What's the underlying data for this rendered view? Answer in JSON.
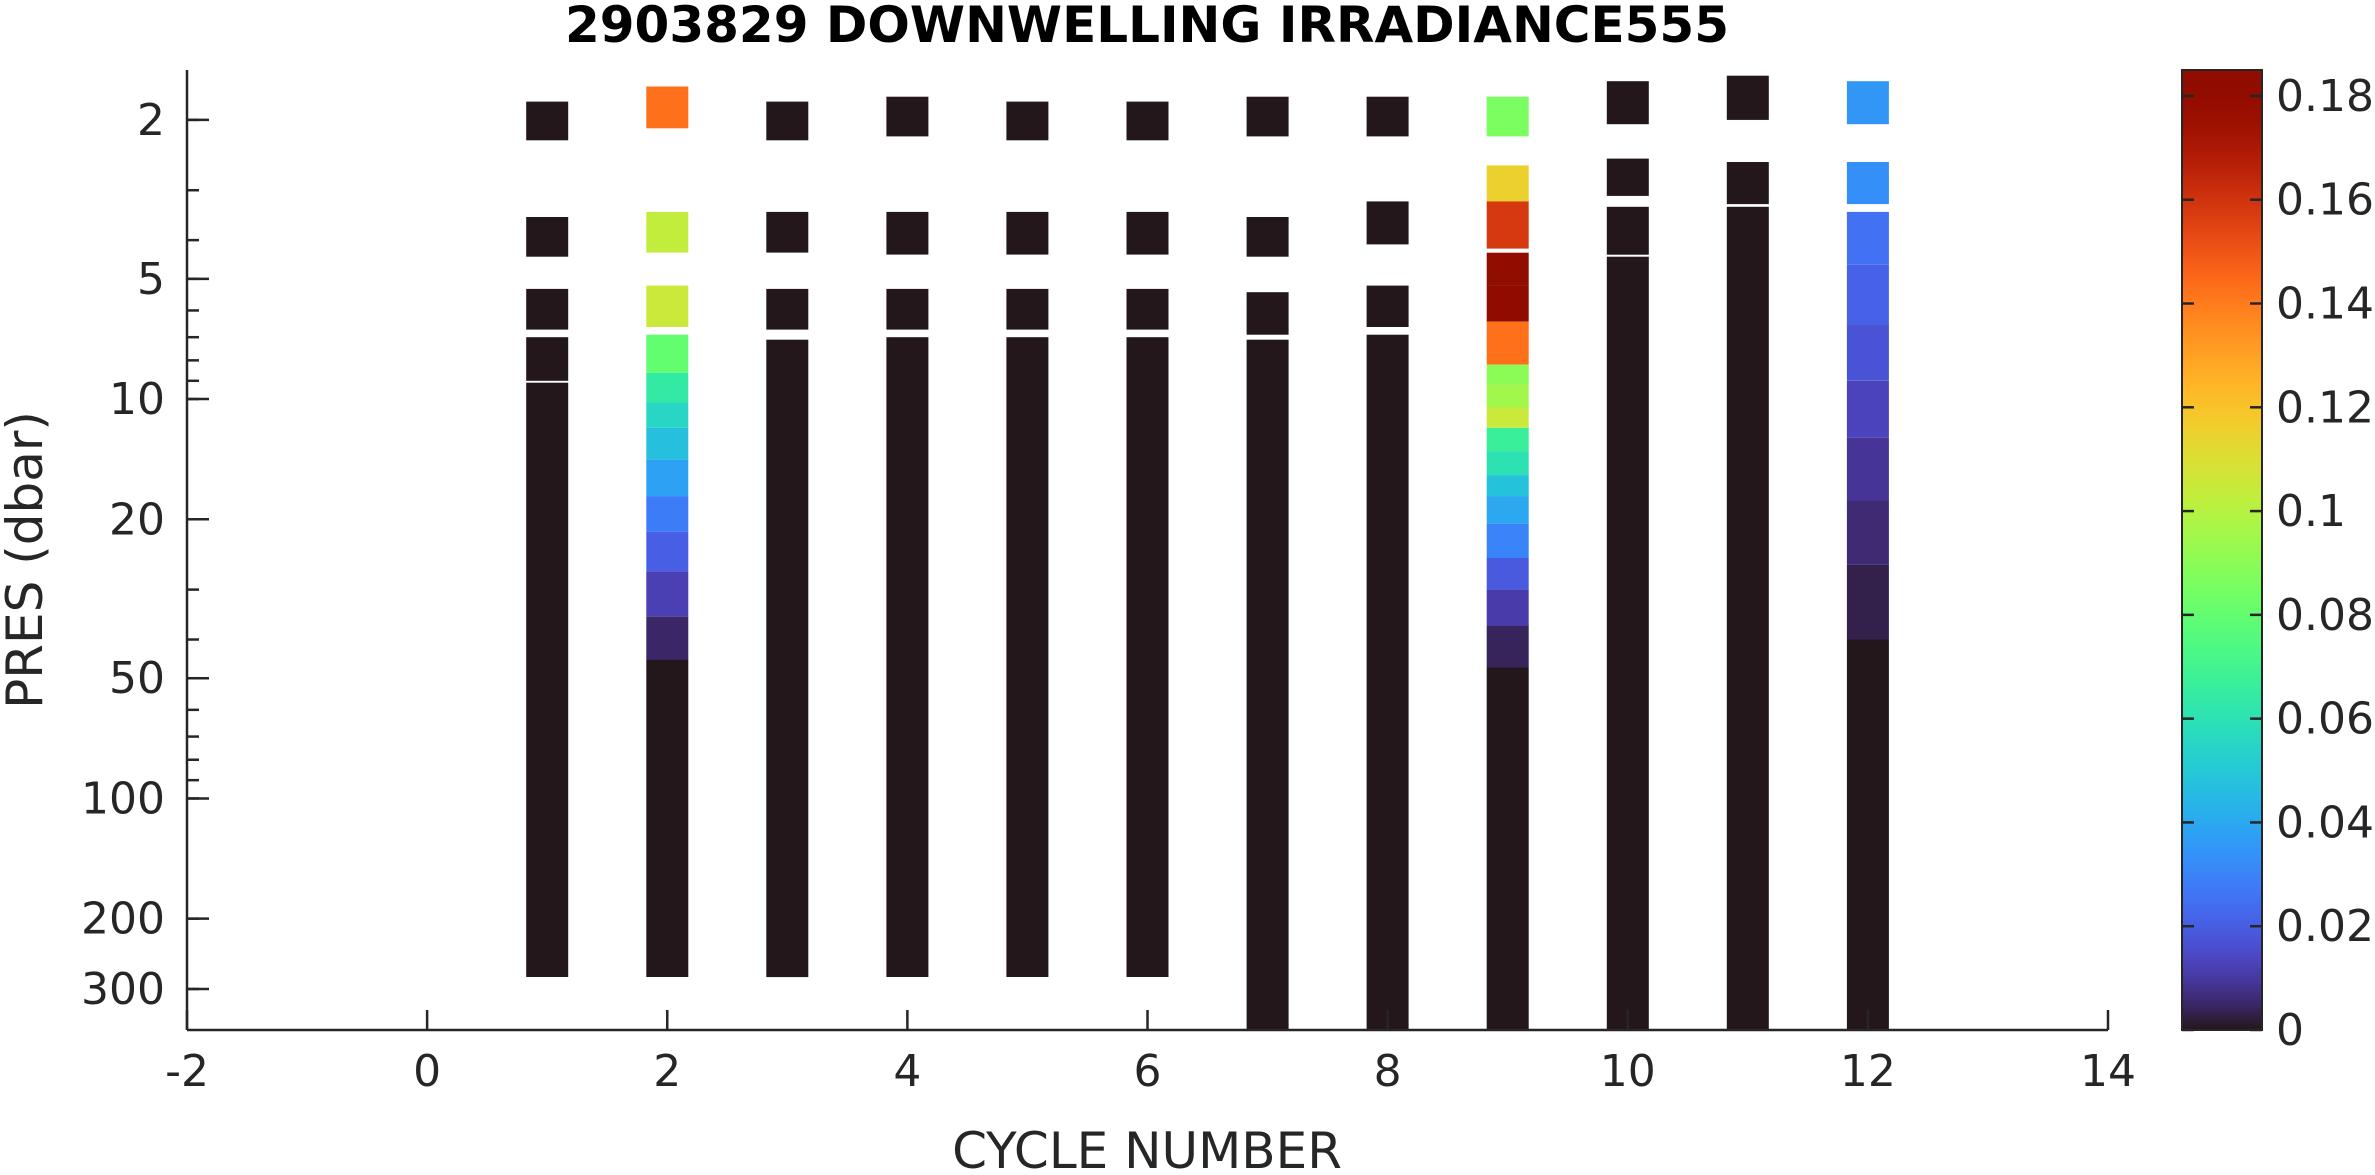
{
  "chart_data": {
    "type": "heatmap",
    "title": "2903829  DOWNWELLING IRRADIANCE555",
    "xlabel": "CYCLE NUMBER",
    "ylabel": "PRES (dbar)",
    "xlim": [
      -2,
      14
    ],
    "x_ticks": [
      -2,
      0,
      2,
      4,
      6,
      8,
      10,
      12,
      14
    ],
    "x_tick_labels": [
      "-2",
      "0",
      "2",
      "4",
      "6",
      "8",
      "10",
      "12",
      "14"
    ],
    "y_scale": "log",
    "y_reversed": true,
    "ylim": [
      1.5,
      380
    ],
    "y_ticks": [
      2,
      5,
      10,
      20,
      50,
      100,
      200,
      300
    ],
    "y_tick_labels": [
      "2",
      "5",
      "10",
      "20",
      "50",
      "100",
      "200",
      "300"
    ],
    "colorbar": {
      "colormap": "turbo",
      "clim": [
        0,
        0.185
      ],
      "ticks": [
        0,
        0.02,
        0.04,
        0.06,
        0.08,
        0.1,
        0.12,
        0.14,
        0.16,
        0.18
      ],
      "tick_labels": [
        "0",
        "0.02",
        "0.04",
        "0.06",
        "0.08",
        "0.1",
        "0.12",
        "0.14",
        "0.16",
        "0.18"
      ]
    },
    "profiles": [
      {
        "cycle": 1,
        "samples": [
          {
            "p1": 1.8,
            "p2": 2.25,
            "v": 0.0
          },
          {
            "p1": 3.5,
            "p2": 4.4,
            "v": 0.0
          },
          {
            "p1": 5.3,
            "p2": 6.7,
            "v": 0.0
          },
          {
            "p1": 7.0,
            "p2": 9.0,
            "v": 0.0
          },
          {
            "p1": 9.1,
            "p2": 280,
            "v": 0.0
          }
        ]
      },
      {
        "cycle": 2,
        "samples": [
          {
            "p1": 1.65,
            "p2": 2.1,
            "v": 0.143
          },
          {
            "p1": 3.4,
            "p2": 4.3,
            "v": 0.103
          },
          {
            "p1": 5.2,
            "p2": 6.6,
            "v": 0.105
          },
          {
            "p1": 6.9,
            "p2": 8.6,
            "v": 0.08
          },
          {
            "p1": 8.6,
            "p2": 10.2,
            "v": 0.064
          },
          {
            "p1": 10.2,
            "p2": 11.8,
            "v": 0.055
          },
          {
            "p1": 11.8,
            "p2": 14.2,
            "v": 0.047
          },
          {
            "p1": 14.2,
            "p2": 17.5,
            "v": 0.038
          },
          {
            "p1": 17.5,
            "p2": 21.5,
            "v": 0.028
          },
          {
            "p1": 21.5,
            "p2": 27.0,
            "v": 0.02
          },
          {
            "p1": 27.0,
            "p2": 35.0,
            "v": 0.012
          },
          {
            "p1": 35.0,
            "p2": 45.0,
            "v": 0.005
          },
          {
            "p1": 45.0,
            "p2": 280,
            "v": 0.0
          }
        ]
      },
      {
        "cycle": 3,
        "samples": [
          {
            "p1": 1.8,
            "p2": 2.25,
            "v": 0.0
          },
          {
            "p1": 3.4,
            "p2": 4.3,
            "v": 0.0
          },
          {
            "p1": 5.3,
            "p2": 6.7,
            "v": 0.0
          },
          {
            "p1": 7.1,
            "p2": 280,
            "v": 0.0
          }
        ]
      },
      {
        "cycle": 4,
        "samples": [
          {
            "p1": 1.75,
            "p2": 2.2,
            "v": 0.0
          },
          {
            "p1": 3.4,
            "p2": 4.35,
            "v": 0.0
          },
          {
            "p1": 5.3,
            "p2": 6.7,
            "v": 0.0
          },
          {
            "p1": 7.0,
            "p2": 280,
            "v": 0.0
          }
        ]
      },
      {
        "cycle": 5,
        "samples": [
          {
            "p1": 1.8,
            "p2": 2.25,
            "v": 0.0
          },
          {
            "p1": 3.4,
            "p2": 4.35,
            "v": 0.0
          },
          {
            "p1": 5.3,
            "p2": 6.7,
            "v": 0.0
          },
          {
            "p1": 7.0,
            "p2": 280,
            "v": 0.0
          }
        ]
      },
      {
        "cycle": 6,
        "samples": [
          {
            "p1": 1.8,
            "p2": 2.25,
            "v": 0.0
          },
          {
            "p1": 3.4,
            "p2": 4.35,
            "v": 0.0
          },
          {
            "p1": 5.3,
            "p2": 6.7,
            "v": 0.0
          },
          {
            "p1": 7.0,
            "p2": 280,
            "v": 0.0
          }
        ]
      },
      {
        "cycle": 7,
        "samples": [
          {
            "p1": 1.75,
            "p2": 2.2,
            "v": 0.0
          },
          {
            "p1": 3.5,
            "p2": 4.4,
            "v": 0.0
          },
          {
            "p1": 5.4,
            "p2": 6.9,
            "v": 0.0
          },
          {
            "p1": 7.1,
            "p2": 380,
            "v": 0.0
          }
        ]
      },
      {
        "cycle": 8,
        "samples": [
          {
            "p1": 1.75,
            "p2": 2.2,
            "v": 0.0
          },
          {
            "p1": 3.2,
            "p2": 4.1,
            "v": 0.0
          },
          {
            "p1": 5.2,
            "p2": 6.6,
            "v": 0.0
          },
          {
            "p1": 6.9,
            "p2": 380,
            "v": 0.0
          }
        ]
      },
      {
        "cycle": 9,
        "samples": [
          {
            "p1": 1.75,
            "p2": 2.2,
            "v": 0.086
          },
          {
            "p1": 2.6,
            "p2": 3.2,
            "v": 0.115
          },
          {
            "p1": 3.2,
            "p2": 4.2,
            "v": 0.158
          },
          {
            "p1": 4.3,
            "p2": 5.2,
            "v": 0.185
          },
          {
            "p1": 5.2,
            "p2": 6.4,
            "v": 0.183
          },
          {
            "p1": 6.4,
            "p2": 8.2,
            "v": 0.143
          },
          {
            "p1": 8.2,
            "p2": 9.2,
            "v": 0.09
          },
          {
            "p1": 9.2,
            "p2": 10.5,
            "v": 0.095
          },
          {
            "p1": 10.5,
            "p2": 11.8,
            "v": 0.105
          },
          {
            "p1": 11.8,
            "p2": 13.5,
            "v": 0.067
          },
          {
            "p1": 13.5,
            "p2": 15.5,
            "v": 0.06
          },
          {
            "p1": 15.5,
            "p2": 17.5,
            "v": 0.048
          },
          {
            "p1": 17.5,
            "p2": 20.5,
            "v": 0.04
          },
          {
            "p1": 20.5,
            "p2": 25.0,
            "v": 0.03
          },
          {
            "p1": 25.0,
            "p2": 30.0,
            "v": 0.019
          },
          {
            "p1": 30.0,
            "p2": 37.0,
            "v": 0.011
          },
          {
            "p1": 37.0,
            "p2": 47.0,
            "v": 0.004
          },
          {
            "p1": 47.0,
            "p2": 380,
            "v": 0.0
          }
        ]
      },
      {
        "cycle": 10,
        "samples": [
          {
            "p1": 1.6,
            "p2": 2.05,
            "v": 0.0
          },
          {
            "p1": 2.5,
            "p2": 3.1,
            "v": 0.0
          },
          {
            "p1": 3.3,
            "p2": 4.35,
            "v": 0.0
          },
          {
            "p1": 4.4,
            "p2": 380,
            "v": 0.0
          }
        ]
      },
      {
        "cycle": 11,
        "samples": [
          {
            "p1": 1.55,
            "p2": 2.0,
            "v": 0.0
          },
          {
            "p1": 2.55,
            "p2": 3.25,
            "v": 0.0
          },
          {
            "p1": 3.3,
            "p2": 380,
            "v": 0.0
          }
        ]
      },
      {
        "cycle": 12,
        "samples": [
          {
            "p1": 1.6,
            "p2": 2.05,
            "v": 0.035
          },
          {
            "p1": 2.55,
            "p2": 3.25,
            "v": 0.033
          },
          {
            "p1": 3.4,
            "p2": 4.6,
            "v": 0.025
          },
          {
            "p1": 4.6,
            "p2": 6.5,
            "v": 0.021
          },
          {
            "p1": 6.5,
            "p2": 9.0,
            "v": 0.017
          },
          {
            "p1": 9.0,
            "p2": 12.5,
            "v": 0.013
          },
          {
            "p1": 12.5,
            "p2": 18.0,
            "v": 0.009
          },
          {
            "p1": 18.0,
            "p2": 26.0,
            "v": 0.006
          },
          {
            "p1": 26.0,
            "p2": 40.0,
            "v": 0.003
          },
          {
            "p1": 40.0,
            "p2": 380,
            "v": 0.0
          }
        ]
      }
    ]
  }
}
